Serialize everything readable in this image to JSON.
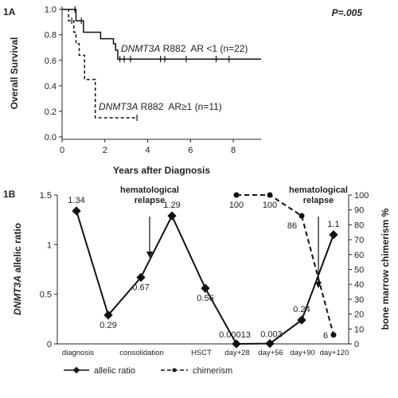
{
  "chart_data": [
    {
      "panel": "1A",
      "type": "line",
      "subtype": "kaplan-meier",
      "pvalue": "P=.005",
      "xlabel": "Years after Diagnosis",
      "ylabel": "Overall Survival",
      "xlim": [
        0,
        9.3
      ],
      "ylim": [
        0,
        1.0
      ],
      "xticks": [
        "0",
        "2",
        "4",
        "6",
        "8"
      ],
      "yticks": [
        "0.0",
        "0.2",
        "0.4",
        "0.6",
        "0.8",
        "1.0"
      ],
      "grid": false,
      "series": [
        {
          "label_em": "DNMT3A",
          "label_rest": " R882  AR <1 (n=22)",
          "style": "solid",
          "steps": [
            [
              0,
              1.0
            ],
            [
              0.65,
              1.0
            ],
            [
              0.65,
              0.91
            ],
            [
              1.0,
              0.91
            ],
            [
              1.0,
              0.82
            ],
            [
              1.8,
              0.82
            ],
            [
              1.8,
              0.77
            ],
            [
              2.4,
              0.77
            ],
            [
              2.4,
              0.73
            ],
            [
              2.5,
              0.73
            ],
            [
              2.5,
              0.68
            ],
            [
              2.6,
              0.68
            ],
            [
              2.6,
              0.61
            ],
            [
              9.3,
              0.61
            ]
          ],
          "censor": [
            0.6,
            0.9,
            2.7,
            2.9,
            3.2,
            4.6,
            4.8,
            5.8,
            7.2,
            7.8
          ]
        },
        {
          "label_em": "DNMT3A",
          "label_rest": " R882  AR≥1 (n=11)",
          "style": "dashed",
          "steps": [
            [
              0,
              1.0
            ],
            [
              0.3,
              1.0
            ],
            [
              0.3,
              0.91
            ],
            [
              0.55,
              0.91
            ],
            [
              0.55,
              0.82
            ],
            [
              0.65,
              0.82
            ],
            [
              0.65,
              0.73
            ],
            [
              0.8,
              0.73
            ],
            [
              0.8,
              0.64
            ],
            [
              1.05,
              0.64
            ],
            [
              1.05,
              0.45
            ],
            [
              1.55,
              0.45
            ],
            [
              1.55,
              0.15
            ],
            [
              3.5,
              0.15
            ]
          ],
          "censor": [
            0.45,
            3.5
          ]
        }
      ]
    },
    {
      "panel": "1B",
      "type": "line",
      "ylabel_left_em": "DNMT3A",
      "ylabel_left_rest": " allelic ratio",
      "ylabel_right": "bone marrow chimerism %",
      "ylim_left": [
        0,
        1.5
      ],
      "ylim_right": [
        0,
        100
      ],
      "yticks_left": [
        "0",
        "0.5",
        "1",
        "1.5"
      ],
      "yticks_right": [
        "0",
        "10",
        "20",
        "30",
        "40",
        "50",
        "60",
        "70",
        "80",
        "90",
        "100"
      ],
      "xticklabels": [
        "diagnosis",
        "consolidation",
        "HSCT",
        "day+28",
        "day+56",
        "day+90",
        "day+120"
      ],
      "annotations": [
        {
          "lines": [
            "hematological",
            "relapse"
          ],
          "at_index": 1.5
        },
        {
          "lines": [
            "hematological",
            "relapse"
          ],
          "at_index": 8.5
        }
      ],
      "legend_position": "bottom",
      "series": [
        {
          "name": "allelic ratio",
          "axis": "left",
          "style": "solid",
          "x_index": [
            0,
            1,
            2,
            3,
            4,
            5,
            6,
            7,
            8
          ],
          "values": [
            1.34,
            0.29,
            0.67,
            1.29,
            0.56,
            0.00013,
            0.003,
            0.24,
            1.1
          ],
          "labels": [
            "1.34",
            "0.29",
            "0.67",
            "1.29",
            "0.56",
            "0.00013",
            "0.003",
            "0.24",
            "1.1"
          ]
        },
        {
          "name": "chimerism",
          "axis": "right",
          "style": "dashed",
          "x_index": [
            5,
            6,
            7,
            8
          ],
          "values": [
            100,
            100,
            86,
            6
          ],
          "labels": [
            "100",
            "100",
            "86",
            "6"
          ]
        }
      ]
    }
  ]
}
